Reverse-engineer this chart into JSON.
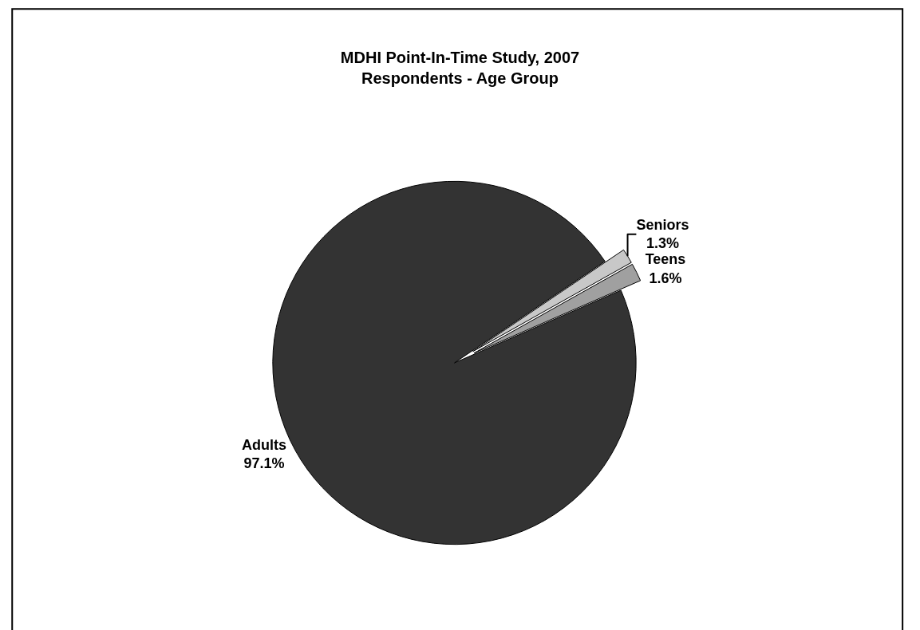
{
  "chart_data": {
    "type": "pie",
    "title": "MDHI Point-In-Time Study, 2007\nRespondents - Age Group",
    "categories": [
      "Seniors",
      "Teens",
      "Adults"
    ],
    "values": [
      1.3,
      1.6,
      97.1
    ],
    "colors": [
      "#c8c8c8",
      "#a0a0a0",
      "#333333"
    ],
    "value_labels": [
      "1.3%",
      "1.6%",
      "97.1%"
    ],
    "legend": false
  }
}
